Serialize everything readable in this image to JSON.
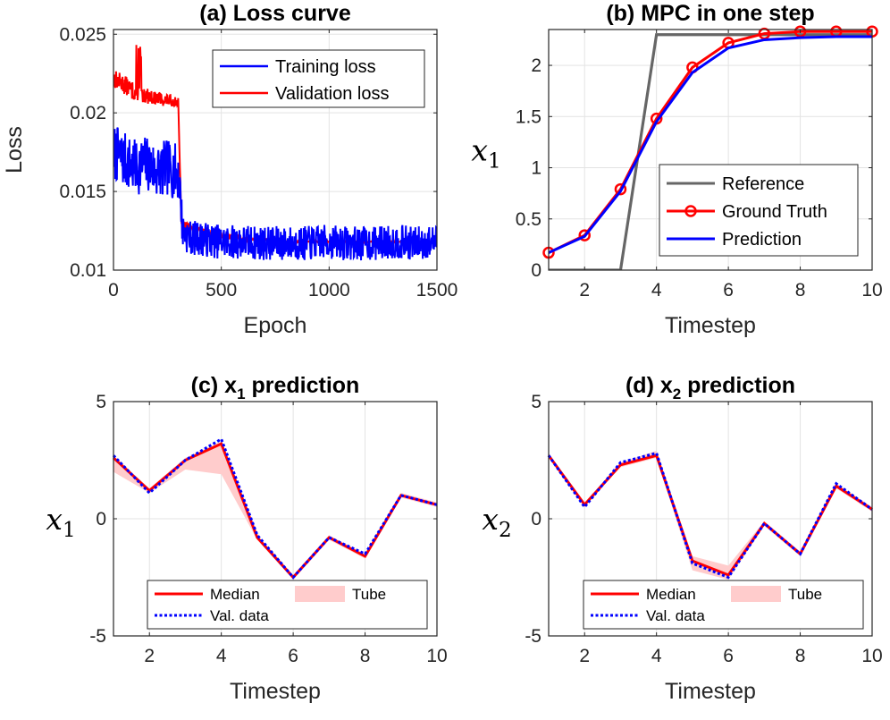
{
  "chart_data": [
    {
      "id": "a",
      "type": "line",
      "title": "(a) Loss curve",
      "xlabel": "Epoch",
      "ylabel": "Loss",
      "xlim": [
        0,
        1500
      ],
      "ylim": [
        0.01,
        0.0253
      ],
      "xticks": [
        0,
        500,
        1000,
        1500
      ],
      "yticks": [
        0.01,
        0.015,
        0.02,
        0.025
      ],
      "xtick_labels": [
        "0",
        "500",
        "1000",
        "1500"
      ],
      "ytick_labels": [
        "0.01",
        "0.015",
        "0.02",
        "0.025"
      ],
      "grid": true,
      "legend_position": "top-right",
      "series": [
        {
          "name": "Training loss",
          "color": "#0000ff",
          "x": [
            0,
            50,
            100,
            150,
            200,
            250,
            300,
            310,
            320,
            350,
            400,
            450,
            500,
            600,
            700,
            800,
            900,
            1000,
            1100,
            1200,
            1300,
            1400,
            1500
          ],
          "values": [
            0.0175,
            0.017,
            0.0165,
            0.0168,
            0.0163,
            0.0165,
            0.0162,
            0.015,
            0.0125,
            0.0121,
            0.012,
            0.0119,
            0.0118,
            0.0118,
            0.0117,
            0.0117,
            0.0117,
            0.0118,
            0.0117,
            0.0117,
            0.0118,
            0.0117,
            0.0118
          ],
          "noise": [
            0.0018,
            0.0018,
            0.0018,
            0.0018,
            0.0018,
            0.0018,
            0.0018,
            0.0012,
            0.0012,
            0.0011,
            0.0011,
            0.0011,
            0.0011,
            0.0011,
            0.0011,
            0.0011,
            0.0011,
            0.0011,
            0.0011,
            0.0011,
            0.0011,
            0.0011,
            0.0011
          ]
        },
        {
          "name": "Validation loss",
          "color": "#ff0000",
          "x": [
            0,
            50,
            100,
            150,
            200,
            250,
            300,
            305,
            315,
            350,
            400,
            500,
            600,
            700,
            800,
            900,
            1000,
            1100,
            1200,
            1300,
            1400,
            1500
          ],
          "values": [
            0.0222,
            0.0218,
            0.0213,
            0.0211,
            0.0209,
            0.0208,
            0.0207,
            0.018,
            0.013,
            0.0127,
            0.0125,
            0.0122,
            0.012,
            0.0119,
            0.0118,
            0.0118,
            0.0118,
            0.0118,
            0.0118,
            0.0118,
            0.0118,
            0.0118
          ],
          "noise": [
            0.0006,
            0.0006,
            0.0006,
            0.0005,
            0.0004,
            0.0004,
            0.0003,
            0.0002,
            0.0003,
            0.0003,
            0.0002,
            0.0002,
            0.0001,
            0.0001,
            6e-05,
            5e-05,
            5e-05,
            4e-05,
            4e-05,
            4e-05,
            3e-05,
            3e-05
          ]
        }
      ]
    },
    {
      "id": "b",
      "type": "line",
      "title": "(b) MPC in one step",
      "xlabel": "Timestep",
      "ylabel": "x1",
      "ylabel_base": "x",
      "ylabel_sub": "1",
      "xlim": [
        1,
        10
      ],
      "ylim": [
        0,
        2.35
      ],
      "xticks": [
        2,
        4,
        6,
        8,
        10
      ],
      "yticks": [
        0,
        0.5,
        1,
        1.5,
        2
      ],
      "xtick_labels": [
        "2",
        "4",
        "6",
        "8",
        "10"
      ],
      "ytick_labels": [
        "0",
        "0.5",
        "1",
        "1.5",
        "2"
      ],
      "grid": true,
      "legend_position": "bottom-right",
      "series": [
        {
          "name": "Reference",
          "color": "#666666",
          "x": [
            1,
            2,
            3,
            4,
            5,
            6,
            7,
            8,
            9,
            10
          ],
          "values": [
            0,
            0,
            0,
            2.3,
            2.3,
            2.3,
            2.3,
            2.3,
            2.3,
            2.3
          ]
        },
        {
          "name": "Ground Truth",
          "color": "#ff0000",
          "marker": "circle",
          "x": [
            1,
            2,
            3,
            4,
            5,
            6,
            7,
            8,
            9,
            10
          ],
          "values": [
            0.17,
            0.34,
            0.79,
            1.48,
            1.98,
            2.22,
            2.31,
            2.33,
            2.33,
            2.33
          ]
        },
        {
          "name": "Prediction",
          "color": "#0000ff",
          "x": [
            1,
            2,
            3,
            4,
            5,
            6,
            7,
            8,
            9,
            10
          ],
          "values": [
            0.17,
            0.33,
            0.77,
            1.45,
            1.93,
            2.17,
            2.25,
            2.27,
            2.28,
            2.28
          ]
        }
      ]
    },
    {
      "id": "c",
      "type": "line",
      "title": "(c) x",
      "title_sub": "1",
      "title_rest": " prediction",
      "xlabel": "Timestep",
      "ylabel": "x1",
      "ylabel_base": "x",
      "ylabel_sub": "1",
      "xlim": [
        1,
        10
      ],
      "ylim": [
        -5,
        5
      ],
      "xticks": [
        2,
        4,
        6,
        8,
        10
      ],
      "yticks": [
        -5,
        0,
        5
      ],
      "xtick_labels": [
        "2",
        "4",
        "6",
        "8",
        "10"
      ],
      "ytick_labels": [
        "-5",
        "0",
        "5"
      ],
      "grid": true,
      "legend_position": "bottom",
      "legend_labels": [
        "Median",
        "Tube",
        "Val. data"
      ],
      "x": [
        1,
        2,
        3,
        4,
        5,
        6,
        7,
        8,
        9,
        10
      ],
      "median": [
        2.6,
        1.2,
        2.5,
        3.2,
        -0.8,
        -2.5,
        -0.8,
        -1.6,
        1.0,
        0.6
      ],
      "tube_upper": [
        2.7,
        1.3,
        2.6,
        3.3,
        -0.7,
        -2.4,
        -0.7,
        -1.5,
        1.1,
        0.7
      ],
      "tube_lower": [
        2.0,
        1.1,
        2.1,
        1.9,
        -0.9,
        -2.6,
        -0.9,
        -1.7,
        0.9,
        0.5
      ],
      "val_data": [
        2.7,
        1.1,
        2.5,
        3.4,
        -0.7,
        -2.5,
        -0.8,
        -1.5,
        1.0,
        0.6
      ]
    },
    {
      "id": "d",
      "type": "line",
      "title": "(d) x",
      "title_sub": "2",
      "title_rest": " prediction",
      "xlabel": "Timestep",
      "ylabel": "x2",
      "ylabel_base": "x",
      "ylabel_sub": "2",
      "xlim": [
        1,
        10
      ],
      "ylim": [
        -5,
        5
      ],
      "xticks": [
        2,
        4,
        6,
        8,
        10
      ],
      "yticks": [
        -5,
        0,
        5
      ],
      "xtick_labels": [
        "2",
        "4",
        "6",
        "8",
        "10"
      ],
      "ytick_labels": [
        "-5",
        "0",
        "5"
      ],
      "grid": true,
      "legend_position": "bottom",
      "legend_labels": [
        "Median",
        "Tube",
        "Val. data"
      ],
      "x": [
        1,
        2,
        3,
        4,
        5,
        6,
        7,
        8,
        9,
        10
      ],
      "median": [
        2.7,
        0.6,
        2.3,
        2.7,
        -1.8,
        -2.4,
        -0.2,
        -1.5,
        1.4,
        0.4
      ],
      "tube_upper": [
        2.8,
        0.7,
        2.4,
        2.9,
        -1.6,
        -2.0,
        -0.1,
        -1.4,
        1.5,
        0.5
      ],
      "tube_lower": [
        2.6,
        0.5,
        2.2,
        2.6,
        -2.2,
        -2.6,
        -0.3,
        -1.6,
        1.3,
        0.3
      ],
      "val_data": [
        2.7,
        0.5,
        2.4,
        2.8,
        -1.9,
        -2.5,
        -0.2,
        -1.5,
        1.5,
        0.4
      ]
    }
  ]
}
